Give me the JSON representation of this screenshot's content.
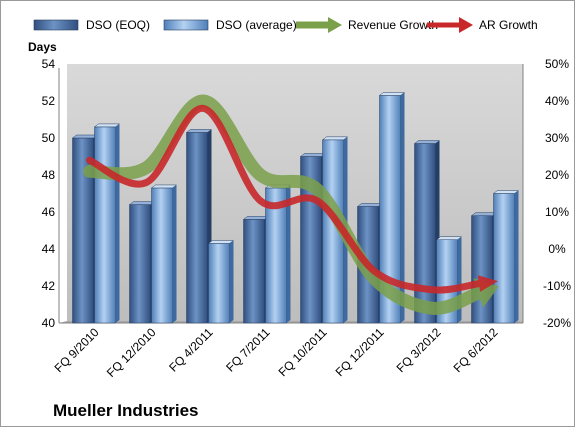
{
  "chart_data": {
    "type": "bar",
    "company": "Mueller Industries",
    "ylabel": "Days",
    "categories": [
      "FQ 9/2010",
      "FQ 12/2010",
      "FQ 4/2011",
      "FQ 7/2011",
      "FQ 10/2011",
      "FQ 12/2011",
      "FQ 3/2012",
      "FQ 6/2012"
    ],
    "ylim": [
      40,
      54
    ],
    "yticks": [
      40,
      42,
      44,
      46,
      48,
      50,
      52,
      54
    ],
    "y2lim": [
      -20,
      50
    ],
    "y2ticks": [
      "-20%",
      "-10%",
      "0%",
      "10%",
      "20%",
      "30%",
      "40%",
      "50%"
    ],
    "grid": false,
    "legend_position": "top",
    "series": [
      {
        "name": "DSO (EOQ)",
        "kind": "bar",
        "color": "#4a6fa5",
        "values": [
          50.0,
          46.4,
          50.3,
          45.6,
          49.0,
          46.3,
          49.7,
          45.8
        ]
      },
      {
        "name": "DSO (average)",
        "kind": "bar",
        "color": "#7aa6da",
        "values": [
          50.6,
          47.3,
          44.3,
          47.3,
          49.9,
          52.3,
          44.5,
          47.0
        ]
      },
      {
        "name": "Revenue Growth",
        "kind": "line",
        "axis": "right",
        "color": "#7ba04a",
        "values": [
          21,
          22,
          40,
          20,
          16,
          -8,
          -16,
          -11
        ]
      },
      {
        "name": "AR Growth",
        "kind": "line",
        "axis": "right",
        "color": "#c8282a",
        "values": [
          24,
          18,
          38,
          13,
          13,
          -6,
          -11,
          -9
        ]
      }
    ]
  }
}
